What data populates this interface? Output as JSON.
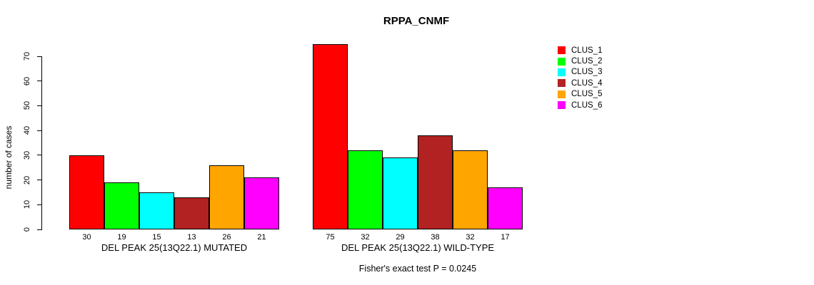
{
  "chart_data": {
    "type": "bar",
    "title": "RPPA_CNMF",
    "ylabel": "number of cases",
    "ylim": [
      0,
      70
    ],
    "yticks": [
      0,
      10,
      20,
      30,
      40,
      50,
      60,
      70
    ],
    "grid": false,
    "legend_position": "top-right",
    "legend": [
      {
        "label": "CLUS_1",
        "color": "#FF0000"
      },
      {
        "label": "CLUS_2",
        "color": "#00FF00"
      },
      {
        "label": "CLUS_3",
        "color": "#00FFFF"
      },
      {
        "label": "CLUS_4",
        "color": "#B22222"
      },
      {
        "label": "CLUS_5",
        "color": "#FFA500"
      },
      {
        "label": "CLUS_6",
        "color": "#FF00FF"
      }
    ],
    "groups": [
      {
        "label": "DEL PEAK 25(13Q22.1) MUTATED",
        "values": [
          30,
          19,
          15,
          13,
          26,
          21
        ]
      },
      {
        "label": "DEL PEAK 25(13Q22.1) WILD-TYPE",
        "values": [
          75,
          32,
          29,
          38,
          32,
          17
        ]
      }
    ],
    "footnote": "Fisher's exact test P = 0.0245",
    "colors": {
      "background": "#FFFFFF",
      "axis": "#000000",
      "bar_border": "#000000"
    }
  }
}
